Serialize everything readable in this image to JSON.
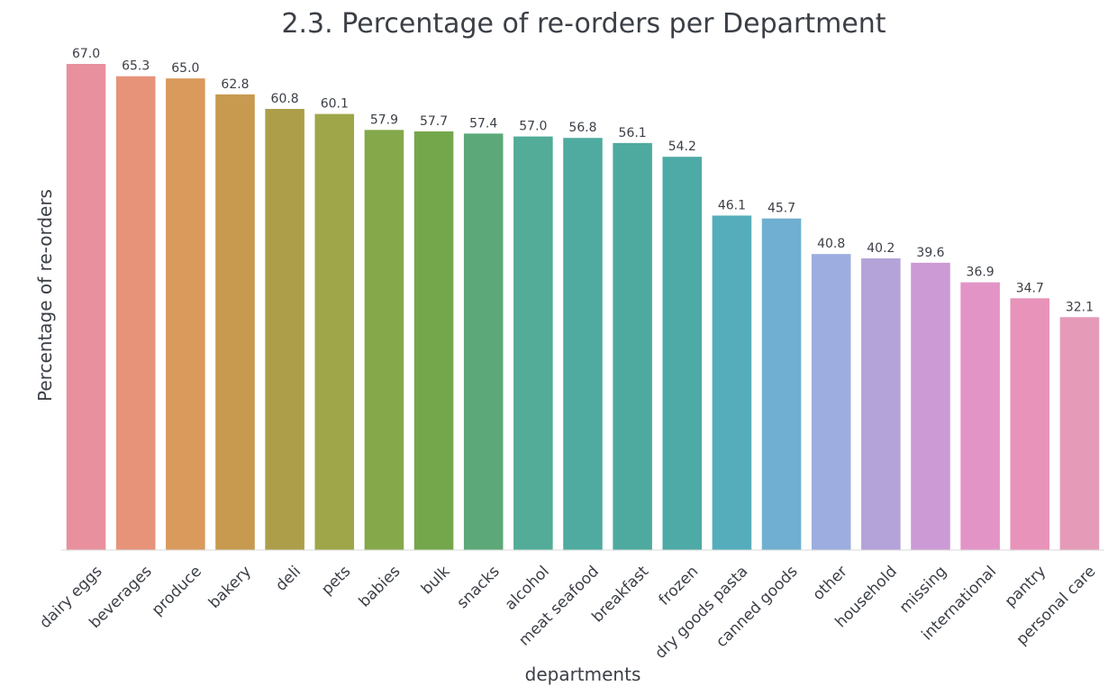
{
  "chart_data": {
    "type": "bar",
    "title": "2.3. Percentage of re-orders per Department",
    "xlabel": "departments",
    "ylabel": "Percentage of re-orders",
    "categories": [
      "dairy eggs",
      "beverages",
      "produce",
      "bakery",
      "deli",
      "pets",
      "babies",
      "bulk",
      "snacks",
      "alcohol",
      "meat seafood",
      "breakfast",
      "frozen",
      "dry goods pasta",
      "canned goods",
      "other",
      "household",
      "missing",
      "international",
      "pantry",
      "personal care"
    ],
    "values": [
      67.0,
      65.3,
      65.0,
      62.8,
      60.8,
      60.1,
      57.9,
      57.7,
      57.4,
      57.0,
      56.8,
      56.1,
      54.2,
      46.1,
      45.7,
      40.8,
      40.2,
      39.6,
      36.9,
      34.7,
      32.1
    ],
    "value_labels": [
      "67.0",
      "65.3",
      "65.0",
      "62.8",
      "60.8",
      "60.1",
      "57.9",
      "57.7",
      "57.4",
      "57.0",
      "56.8",
      "56.1",
      "54.2",
      "46.1",
      "45.7",
      "40.8",
      "40.2",
      "39.6",
      "36.9",
      "34.7",
      "32.1"
    ],
    "ylim": [
      0,
      67
    ],
    "grid": false,
    "legend": "none",
    "colors": [
      "#e8909d",
      "#e6937a",
      "#d99a5c",
      "#c79a4f",
      "#ad9e4a",
      "#9ea649",
      "#85a84a",
      "#74a74b",
      "#5da878",
      "#52ac97",
      "#4fab9f",
      "#4eaa9f",
      "#4eaaa6",
      "#55adbc",
      "#70afd1",
      "#9daddf",
      "#b3a3d9",
      "#cc9bd5",
      "#e394c6",
      "#e893ba",
      "#e59bb8"
    ]
  }
}
